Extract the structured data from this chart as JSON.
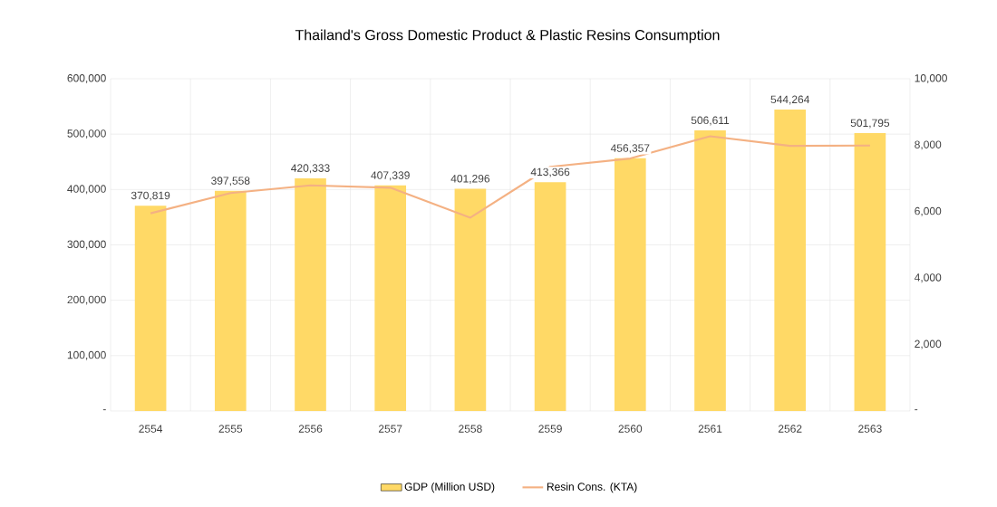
{
  "chart_data": {
    "type": "bar",
    "title": "Thailand's Gross Domestic Product & Plastic Resins Consumption",
    "categories": [
      "2554",
      "2555",
      "2556",
      "2557",
      "2558",
      "2559",
      "2560",
      "2561",
      "2562",
      "2563"
    ],
    "series": [
      {
        "name": "GDP (Million USD)",
        "color": "#ffd966",
        "values": [
          370819,
          397558,
          420333,
          407339,
          401296,
          413366,
          456357,
          506611,
          544264,
          501795
        ],
        "value_labels": [
          "370,819",
          "397,558",
          "420,333",
          "407,339",
          "401,296",
          "413,366",
          "456,357",
          "506,611",
          "544,264",
          "501,795"
        ]
      },
      {
        "name": "Resin Cons. (KTA)",
        "type": "line",
        "axis": "y2",
        "color": "#f4b183",
        "values": [
          5950,
          6560,
          6790,
          6720,
          5820,
          7350,
          7600,
          8270,
          7980,
          7990
        ]
      }
    ],
    "ylim": [
      0,
      600000
    ],
    "yticks": [
      {
        "value": 0,
        "label": "-"
      },
      {
        "value": 100000,
        "label": "100,000"
      },
      {
        "value": 200000,
        "label": "200,000"
      },
      {
        "value": 300000,
        "label": "300,000"
      },
      {
        "value": 400000,
        "label": "400,000"
      },
      {
        "value": 500000,
        "label": "500,000"
      },
      {
        "value": 600000,
        "label": "600,000"
      }
    ],
    "y2lim": [
      0,
      10000
    ],
    "y2ticks": [
      {
        "value": 0,
        "label": "-"
      },
      {
        "value": 2000,
        "label": "2,000"
      },
      {
        "value": 4000,
        "label": "4,000"
      },
      {
        "value": 6000,
        "label": "6,000"
      },
      {
        "value": 8000,
        "label": "8,000"
      },
      {
        "value": 10000,
        "label": "10,000"
      }
    ],
    "grid": true,
    "legend": "bottom"
  }
}
